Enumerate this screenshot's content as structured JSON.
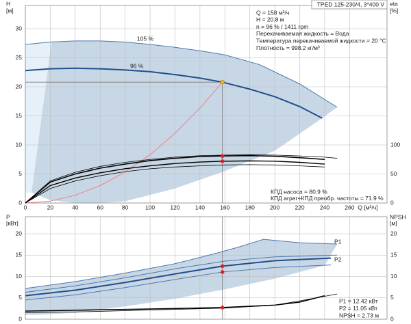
{
  "chart_data": [
    {
      "type": "line",
      "title": "TPED 125-230/4, 3*400 V",
      "ylabel": [
        "H",
        "[м]"
      ],
      "y2label": [
        "eta",
        "[%]"
      ],
      "xlabel": "Q [м³/ч]",
      "xlim": [
        0,
        290
      ],
      "xticks": [
        0,
        20,
        40,
        60,
        80,
        100,
        120,
        140,
        160,
        180,
        200,
        220,
        240,
        260
      ],
      "ylim": [
        0,
        34
      ],
      "yticks": [
        0,
        5,
        10,
        15,
        20,
        25,
        30
      ],
      "y2lim": [
        0,
        340
      ],
      "y2ticks": [
        0,
        50,
        100
      ],
      "grid": true,
      "annotations": [
        "Q = 158 м³/ч",
        "H = 20.8 м",
        "n = 96 % / 1411 rpm",
        "Перекачиваемая жидкость = Вода",
        "Температура перекачиваемой жидкости = 20 °C",
        "Плотность = 998.2 кг/м³"
      ],
      "footnotes": [
        "КПД насоса = 80.9 %",
        "КПД агрег+КПД преобр. частоты = 71.9 %"
      ],
      "areas": [
        {
          "color": "#e6f0f9",
          "x": [
            0,
            21,
            5,
            0
          ],
          "values": [
            27.3,
            27.7,
            1.8,
            1.8
          ]
        },
        {
          "color": "#c8d7e6",
          "x": [
            21,
            40,
            60,
            80,
            100,
            120,
            140,
            160,
            188,
            220,
            250,
            238,
            200,
            160,
            120,
            80,
            60,
            40,
            20,
            5
          ],
          "values": [
            27.7,
            27.9,
            27.9,
            27.7,
            27.3,
            26.8,
            26.2,
            25.5,
            23.8,
            20.5,
            16.5,
            14.6,
            9,
            5.5,
            2.5,
            0.3,
            0,
            0,
            0.5,
            1.8
          ]
        }
      ],
      "series": [
        {
          "name": "105 %",
          "color": "#4a78b0",
          "width": 1,
          "x": [
            0,
            20,
            40,
            60,
            80,
            100,
            120,
            140,
            160,
            188,
            220,
            250
          ],
          "values": [
            27.3,
            27.7,
            27.9,
            27.9,
            27.7,
            27.3,
            26.8,
            26.2,
            25.5,
            23.8,
            20.5,
            16.5
          ]
        },
        {
          "name": "96 %",
          "color": "#1f4e8c",
          "width": 2,
          "x": [
            0,
            20,
            40,
            60,
            80,
            100,
            120,
            140,
            158,
            180,
            200,
            220,
            238
          ],
          "values": [
            22.8,
            23.1,
            23.2,
            23.1,
            22.9,
            22.6,
            22.1,
            21.5,
            20.8,
            19.6,
            18.3,
            16.6,
            14.6
          ]
        },
        {
          "color": "#f08080",
          "width": 1,
          "x": [
            0,
            20,
            40,
            60,
            80,
            100,
            120,
            140,
            158
          ],
          "values": [
            0,
            0.33,
            1.33,
            3.0,
            5.33,
            8.33,
            12.0,
            16.33,
            20.8
          ]
        },
        {
          "color": "#000000",
          "width": 0.8,
          "axis": "y2",
          "x": [
            0,
            20,
            40,
            60,
            80,
            100,
            120,
            140,
            160,
            180,
            200,
            220,
            240,
            250
          ],
          "values": [
            0,
            38,
            53,
            63,
            70,
            75,
            79,
            81.5,
            82.5,
            83,
            82.5,
            81,
            79,
            77
          ]
        },
        {
          "color": "#000000",
          "width": 1.6,
          "axis": "y2",
          "x": [
            0,
            20,
            40,
            60,
            80,
            100,
            120,
            140,
            158,
            180,
            200,
            220,
            240
          ],
          "values": [
            0,
            36,
            50,
            60,
            67,
            73,
            77,
            80,
            80.9,
            81.5,
            80.5,
            78,
            75
          ]
        },
        {
          "color": "#000000",
          "width": 1.4,
          "axis": "y2",
          "x": [
            0,
            20,
            40,
            60,
            80,
            100,
            120,
            140,
            158,
            180,
            200,
            220,
            240
          ],
          "values": [
            0,
            30,
            43,
            52,
            59,
            64,
            68,
            70.5,
            71.9,
            72.5,
            72,
            70,
            67
          ]
        },
        {
          "color": "#000000",
          "width": 0.8,
          "axis": "y2",
          "x": [
            0,
            20,
            40,
            60,
            80,
            100,
            120,
            140,
            160,
            180,
            200,
            220,
            240
          ],
          "values": [
            0,
            25,
            38,
            47,
            54,
            59,
            62,
            64,
            65.5,
            66,
            65.5,
            64,
            62
          ]
        }
      ],
      "points": [
        {
          "color": "#f5b800",
          "x": 158,
          "value": 20.8,
          "guide": true
        },
        {
          "color": "#e02020",
          "axis": "y2",
          "x": 158,
          "value": 80.9
        },
        {
          "color": "#e02020",
          "axis": "y2",
          "x": 158,
          "value": 71.9
        }
      ]
    },
    {
      "type": "line",
      "ylabel": [
        "P",
        "[кВт]"
      ],
      "y2label": [
        "NPSH",
        "[м]"
      ],
      "xlim": [
        0,
        290
      ],
      "ylim": [
        0,
        24
      ],
      "yticks": [
        0,
        5,
        10,
        15,
        20
      ],
      "y2lim": [
        0,
        24
      ],
      "y2ticks": [
        0,
        5,
        10,
        15,
        20
      ],
      "grid": true,
      "footnotes": [
        "P1 = 12.42 кВт",
        "P2 = 11.05 кВт",
        "NPSH = 2.73 м"
      ],
      "areas": [
        {
          "color": "#c8d7e6",
          "x": [
            0,
            40,
            80,
            120,
            150,
            170,
            191,
            220,
            250,
            240,
            200,
            160,
            120,
            80,
            40,
            10,
            0
          ],
          "values": [
            7.2,
            8.8,
            10.8,
            13.0,
            15.2,
            16.8,
            18.7,
            17.9,
            17.6,
            12.6,
            9.5,
            7,
            4.8,
            3,
            1.5,
            1,
            1
          ]
        }
      ],
      "series": [
        {
          "name": "P1",
          "color": "#4a78b0",
          "width": 1,
          "x": [
            0,
            40,
            80,
            120,
            150,
            170,
            191,
            220,
            250
          ],
          "values": [
            7.2,
            8.8,
            10.8,
            13.0,
            15.2,
            16.8,
            18.7,
            17.9,
            17.6
          ]
        },
        {
          "name": "P2",
          "color": "#4a78b0",
          "width": 1,
          "x": [
            0,
            40,
            80,
            120,
            160,
            200,
            250
          ],
          "values": [
            6.3,
            7.8,
            9.7,
            11.8,
            13.6,
            14.6,
            15.0
          ]
        },
        {
          "color": "#1f4e8c",
          "width": 2,
          "x": [
            0,
            40,
            80,
            120,
            158,
            200,
            245
          ],
          "values": [
            5.5,
            6.8,
            8.6,
            10.6,
            12.42,
            13.7,
            14.3
          ]
        },
        {
          "color": "#4a78b0",
          "width": 1,
          "x": [
            0,
            40,
            80,
            120,
            158,
            200,
            245
          ],
          "values": [
            4.5,
            5.7,
            7.4,
            9.3,
            11.05,
            12.1,
            12.7
          ]
        },
        {
          "color": "#000000",
          "width": 0.8,
          "axis": "y2",
          "x": [
            0,
            40,
            80,
            120,
            160,
            200,
            220,
            250
          ],
          "values": [
            1.5,
            1.7,
            2.0,
            2.3,
            2.6,
            3.3,
            4.3,
            5.9
          ]
        },
        {
          "color": "#000000",
          "width": 1.6,
          "axis": "y2",
          "x": [
            0,
            40,
            80,
            120,
            158,
            200,
            220,
            240
          ],
          "values": [
            1.9,
            2.1,
            2.3,
            2.5,
            2.73,
            3.3,
            4.0,
            5.5
          ]
        }
      ],
      "points": [
        {
          "color": "#e02020",
          "x": 158,
          "value": 12.42,
          "guide": true
        },
        {
          "color": "#e02020",
          "x": 158,
          "value": 11.05
        },
        {
          "color": "#e02020",
          "axis": "y2",
          "x": 158,
          "value": 2.73
        }
      ]
    }
  ]
}
